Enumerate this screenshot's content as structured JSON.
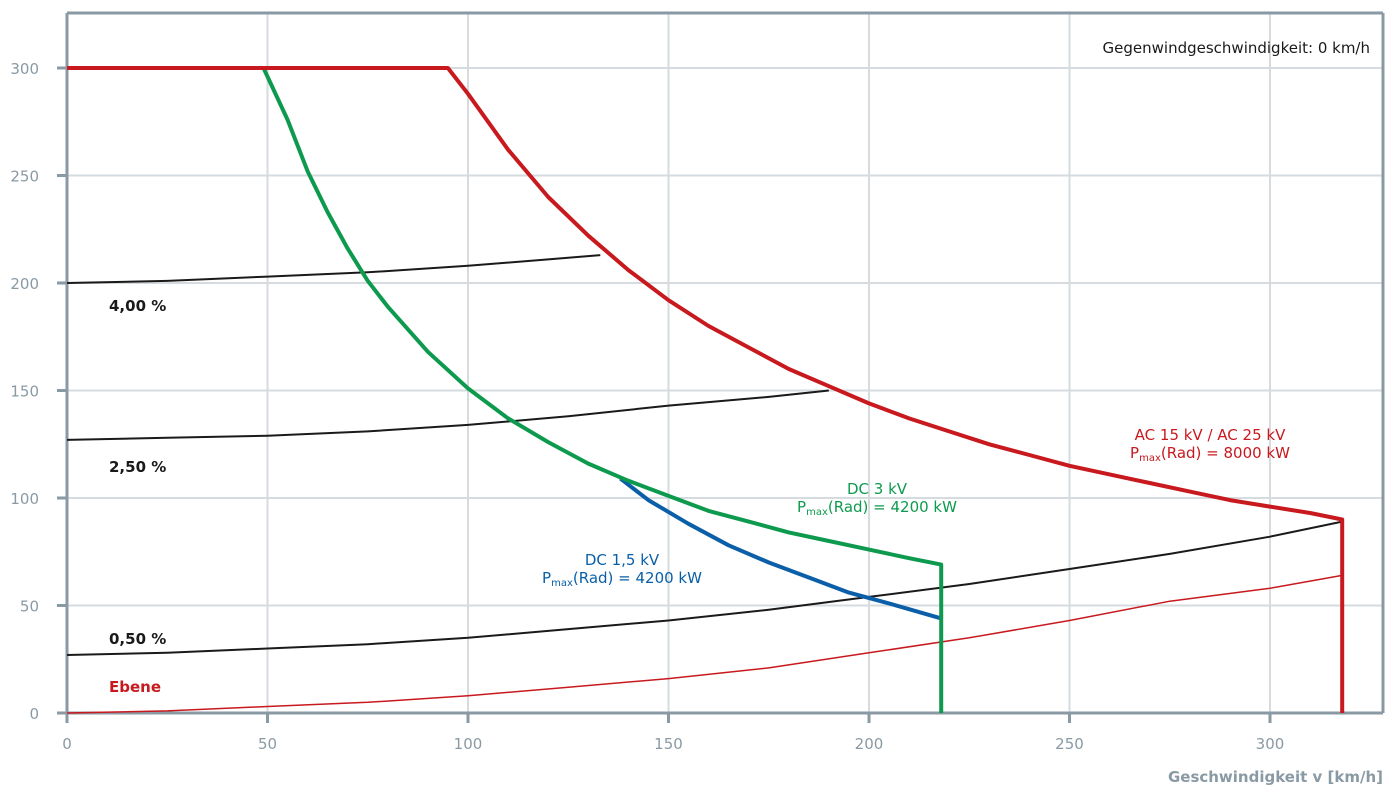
{
  "chart_data": {
    "type": "line",
    "xlabel": "Geschwindigkeit v [km/h]",
    "ylabel": "",
    "xlim": [
      0,
      325
    ],
    "ylim": [
      0,
      325
    ],
    "xticks": [
      0,
      50,
      100,
      150,
      200,
      250,
      300
    ],
    "yticks": [
      0,
      50,
      100,
      150,
      200,
      250,
      300
    ],
    "grid": true,
    "annotation": "Gegenwindgeschwindigkeit: 0 km/h",
    "series": [
      {
        "name": "AC 15 kV / AC 25 kV",
        "label_line1": "AC 15 kV / AC 25 kV",
        "label_line2_pre": "P",
        "label_line2_sub": "max",
        "label_line2_post": "(Rad) = 8000 kW",
        "color": "#c8191e",
        "width": 4,
        "points": [
          [
            0,
            300
          ],
          [
            95,
            300
          ],
          [
            100,
            288
          ],
          [
            110,
            262
          ],
          [
            120,
            240
          ],
          [
            130,
            222
          ],
          [
            140,
            206
          ],
          [
            150,
            192
          ],
          [
            160,
            180
          ],
          [
            170,
            170
          ],
          [
            180,
            160
          ],
          [
            190,
            152
          ],
          [
            200,
            144
          ],
          [
            210,
            137
          ],
          [
            220,
            131
          ],
          [
            230,
            125
          ],
          [
            240,
            120
          ],
          [
            250,
            115
          ],
          [
            260,
            111
          ],
          [
            270,
            107
          ],
          [
            280,
            103
          ],
          [
            290,
            99
          ],
          [
            300,
            96
          ],
          [
            310,
            93
          ],
          [
            318,
            90
          ],
          [
            318,
            0
          ]
        ]
      },
      {
        "name": "DC 3 kV",
        "label_line1": "DC 3 kV",
        "label_line2_pre": "P",
        "label_line2_sub": "max",
        "label_line2_post": "(Rad) = 4200 kW",
        "color": "#0e9a4e",
        "width": 4,
        "points": [
          [
            0,
            300
          ],
          [
            49,
            300
          ],
          [
            55,
            276
          ],
          [
            60,
            252
          ],
          [
            65,
            233
          ],
          [
            70,
            216
          ],
          [
            75,
            201
          ],
          [
            80,
            189
          ],
          [
            90,
            168
          ],
          [
            100,
            151
          ],
          [
            110,
            137
          ],
          [
            120,
            126
          ],
          [
            130,
            116
          ],
          [
            140,
            108
          ],
          [
            150,
            101
          ],
          [
            160,
            94
          ],
          [
            170,
            89
          ],
          [
            180,
            84
          ],
          [
            190,
            80
          ],
          [
            200,
            76
          ],
          [
            210,
            72
          ],
          [
            218,
            69
          ],
          [
            218,
            0
          ]
        ]
      },
      {
        "name": "DC 1,5 kV",
        "label_line1": "DC 1,5 kV",
        "label_line2_pre": "P",
        "label_line2_sub": "max",
        "label_line2_post": "(Rad) = 4200 kW",
        "color": "#0a5fa8",
        "width": 4,
        "points": [
          [
            138,
            109
          ],
          [
            145,
            99
          ],
          [
            155,
            88
          ],
          [
            165,
            78
          ],
          [
            175,
            70
          ],
          [
            185,
            63
          ],
          [
            195,
            56
          ],
          [
            205,
            51
          ],
          [
            218,
            44
          ]
        ]
      },
      {
        "name": "4,00 %",
        "color": "#1a1a1a",
        "width": 2,
        "points": [
          [
            0,
            200
          ],
          [
            25,
            201
          ],
          [
            50,
            203
          ],
          [
            75,
            205
          ],
          [
            100,
            208
          ],
          [
            120,
            211
          ],
          [
            133,
            213
          ]
        ]
      },
      {
        "name": "2,50 %",
        "color": "#1a1a1a",
        "width": 2,
        "points": [
          [
            0,
            127
          ],
          [
            25,
            128
          ],
          [
            50,
            129
          ],
          [
            75,
            131
          ],
          [
            100,
            134
          ],
          [
            125,
            138
          ],
          [
            150,
            143
          ],
          [
            175,
            147
          ],
          [
            190,
            150
          ]
        ]
      },
      {
        "name": "0,50 %",
        "color": "#1a1a1a",
        "width": 2,
        "points": [
          [
            0,
            27
          ],
          [
            25,
            28
          ],
          [
            50,
            30
          ],
          [
            75,
            32
          ],
          [
            100,
            35
          ],
          [
            125,
            39
          ],
          [
            150,
            43
          ],
          [
            175,
            48
          ],
          [
            200,
            54
          ],
          [
            225,
            60
          ],
          [
            250,
            67
          ],
          [
            275,
            74
          ],
          [
            300,
            82
          ],
          [
            318,
            89
          ]
        ]
      },
      {
        "name": "Ebene",
        "color": "#c8191e",
        "width": 1.5,
        "points": [
          [
            0,
            0
          ],
          [
            25,
            1
          ],
          [
            50,
            3
          ],
          [
            75,
            5
          ],
          [
            100,
            8
          ],
          [
            125,
            12
          ],
          [
            150,
            16
          ],
          [
            175,
            21
          ],
          [
            200,
            28
          ],
          [
            225,
            35
          ],
          [
            250,
            43
          ],
          [
            275,
            52
          ],
          [
            300,
            58
          ],
          [
            318,
            64
          ]
        ]
      }
    ],
    "gradient_labels": [
      {
        "text": "4,00 %",
        "color": "#1a1a1a"
      },
      {
        "text": "2,50 %",
        "color": "#1a1a1a"
      },
      {
        "text": "0,50 %",
        "color": "#1a1a1a"
      },
      {
        "text": "Ebene",
        "color": "#c8191e"
      }
    ]
  }
}
